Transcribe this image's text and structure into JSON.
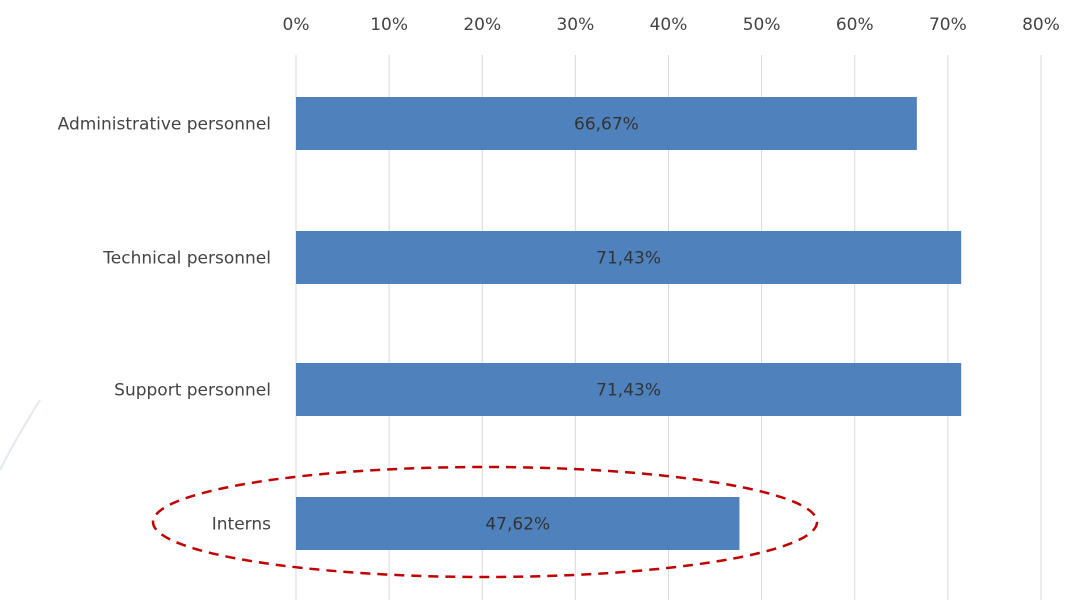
{
  "chart_data": {
    "type": "bar",
    "orientation": "horizontal",
    "categories": [
      "Administrative personnel",
      "Technical personnel",
      "Support personnel",
      "Interns"
    ],
    "values": [
      66.67,
      71.43,
      71.43,
      47.62
    ],
    "value_labels": [
      "66,67%",
      "71,43%",
      "71,43%",
      "47,62%"
    ],
    "color": "#4f81bd",
    "xlim": [
      0,
      80
    ],
    "xticks": [
      {
        "value": 0,
        "label": "0%"
      },
      {
        "value": 10,
        "label": "10%"
      },
      {
        "value": 20,
        "label": "20%"
      },
      {
        "value": 30,
        "label": "30%"
      },
      {
        "value": 40,
        "label": "40%"
      },
      {
        "value": 50,
        "label": "50%"
      },
      {
        "value": 60,
        "label": "60%"
      },
      {
        "value": 70,
        "label": "70%"
      },
      {
        "value": 80,
        "label": "80%"
      }
    ],
    "grid": true
  }
}
